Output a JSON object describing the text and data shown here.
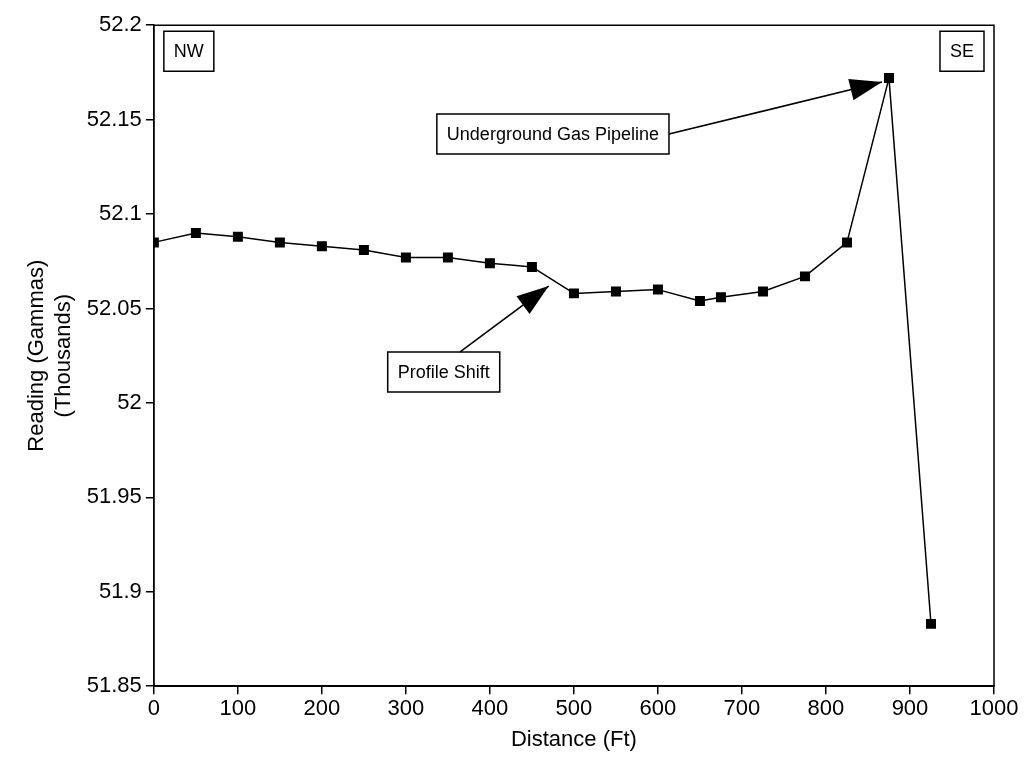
{
  "chart_data": {
    "type": "line",
    "xlabel": "Distance (Ft)",
    "ylabel": "Reading (Gammas)\n(Thousands)",
    "series": [
      {
        "color": "#000000",
        "x": [
          0,
          50,
          100,
          150,
          200,
          250,
          300,
          350,
          400,
          450,
          500,
          550,
          600,
          650,
          675,
          725,
          775,
          825,
          875,
          925
        ],
        "values": [
          52.085,
          52.09,
          52.088,
          52.085,
          52.083,
          52.081,
          52.077,
          52.077,
          52.074,
          52.072,
          52.058,
          52.059,
          52.06,
          52.054,
          52.056,
          52.059,
          52.067,
          52.085,
          52.172,
          51.883
        ]
      }
    ],
    "xlim": [
      0,
      1000
    ],
    "xticks": [
      0,
      100,
      200,
      300,
      400,
      500,
      600,
      700,
      800,
      900,
      1000
    ],
    "ylim": [
      51.85,
      52.2
    ],
    "yticks": [
      51.85,
      51.9,
      51.95,
      52,
      52.05,
      52.1,
      52.15,
      52.2
    ],
    "grid": false,
    "legend": false,
    "marker": "square",
    "line_style": "solid",
    "annotations": [
      "NW",
      "SE",
      {
        "text": "Underground Gas Pipeline",
        "x": 875,
        "y": 52.172
      },
      {
        "text": "Profile Shift",
        "x": 470,
        "y": 52.064
      }
    ]
  }
}
